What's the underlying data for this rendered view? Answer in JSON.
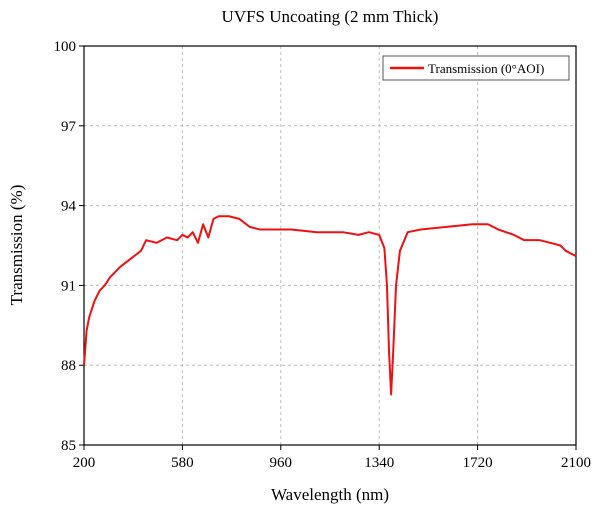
{
  "chart_data": {
    "type": "line",
    "title": "UVFS Uncoating (2 mm  Thick)",
    "x_label": "Wavelength (nm)",
    "y_label": "Transmission (%)",
    "x": [
      200,
      210,
      220,
      240,
      260,
      280,
      300,
      340,
      380,
      420,
      440,
      480,
      520,
      560,
      580,
      600,
      620,
      640,
      660,
      680,
      700,
      720,
      760,
      800,
      840,
      880,
      920,
      960,
      1000,
      1100,
      1200,
      1260,
      1300,
      1340,
      1360,
      1370,
      1378,
      1386,
      1394,
      1405,
      1420,
      1450,
      1500,
      1600,
      1700,
      1760,
      1800,
      1860,
      1900,
      1960,
      2000,
      2040,
      2060,
      2080,
      2100
    ],
    "series": [
      {
        "name": "Transmission (0°AOI)",
        "color": "#ee1111",
        "values": [
          88.0,
          89.3,
          89.8,
          90.4,
          90.8,
          91.0,
          91.3,
          91.7,
          92.0,
          92.3,
          92.7,
          92.6,
          92.8,
          92.7,
          92.9,
          92.8,
          93.0,
          92.6,
          93.3,
          92.8,
          93.5,
          93.6,
          93.6,
          93.5,
          93.2,
          93.1,
          93.1,
          93.1,
          93.1,
          93.0,
          93.0,
          92.9,
          93.0,
          92.9,
          92.4,
          91.0,
          88.5,
          86.9,
          88.5,
          91.0,
          92.3,
          93.0,
          93.1,
          93.2,
          93.3,
          93.3,
          93.1,
          92.9,
          92.7,
          92.7,
          92.6,
          92.5,
          92.3,
          92.2,
          92.1
        ]
      }
    ],
    "xlim": [
      200,
      2100
    ],
    "ylim": [
      85,
      100
    ],
    "xticks": [
      200,
      580,
      960,
      1340,
      1720,
      2100
    ],
    "yticks": [
      85,
      88,
      91,
      94,
      97,
      100
    ],
    "grid": true,
    "legend": "top-right"
  }
}
